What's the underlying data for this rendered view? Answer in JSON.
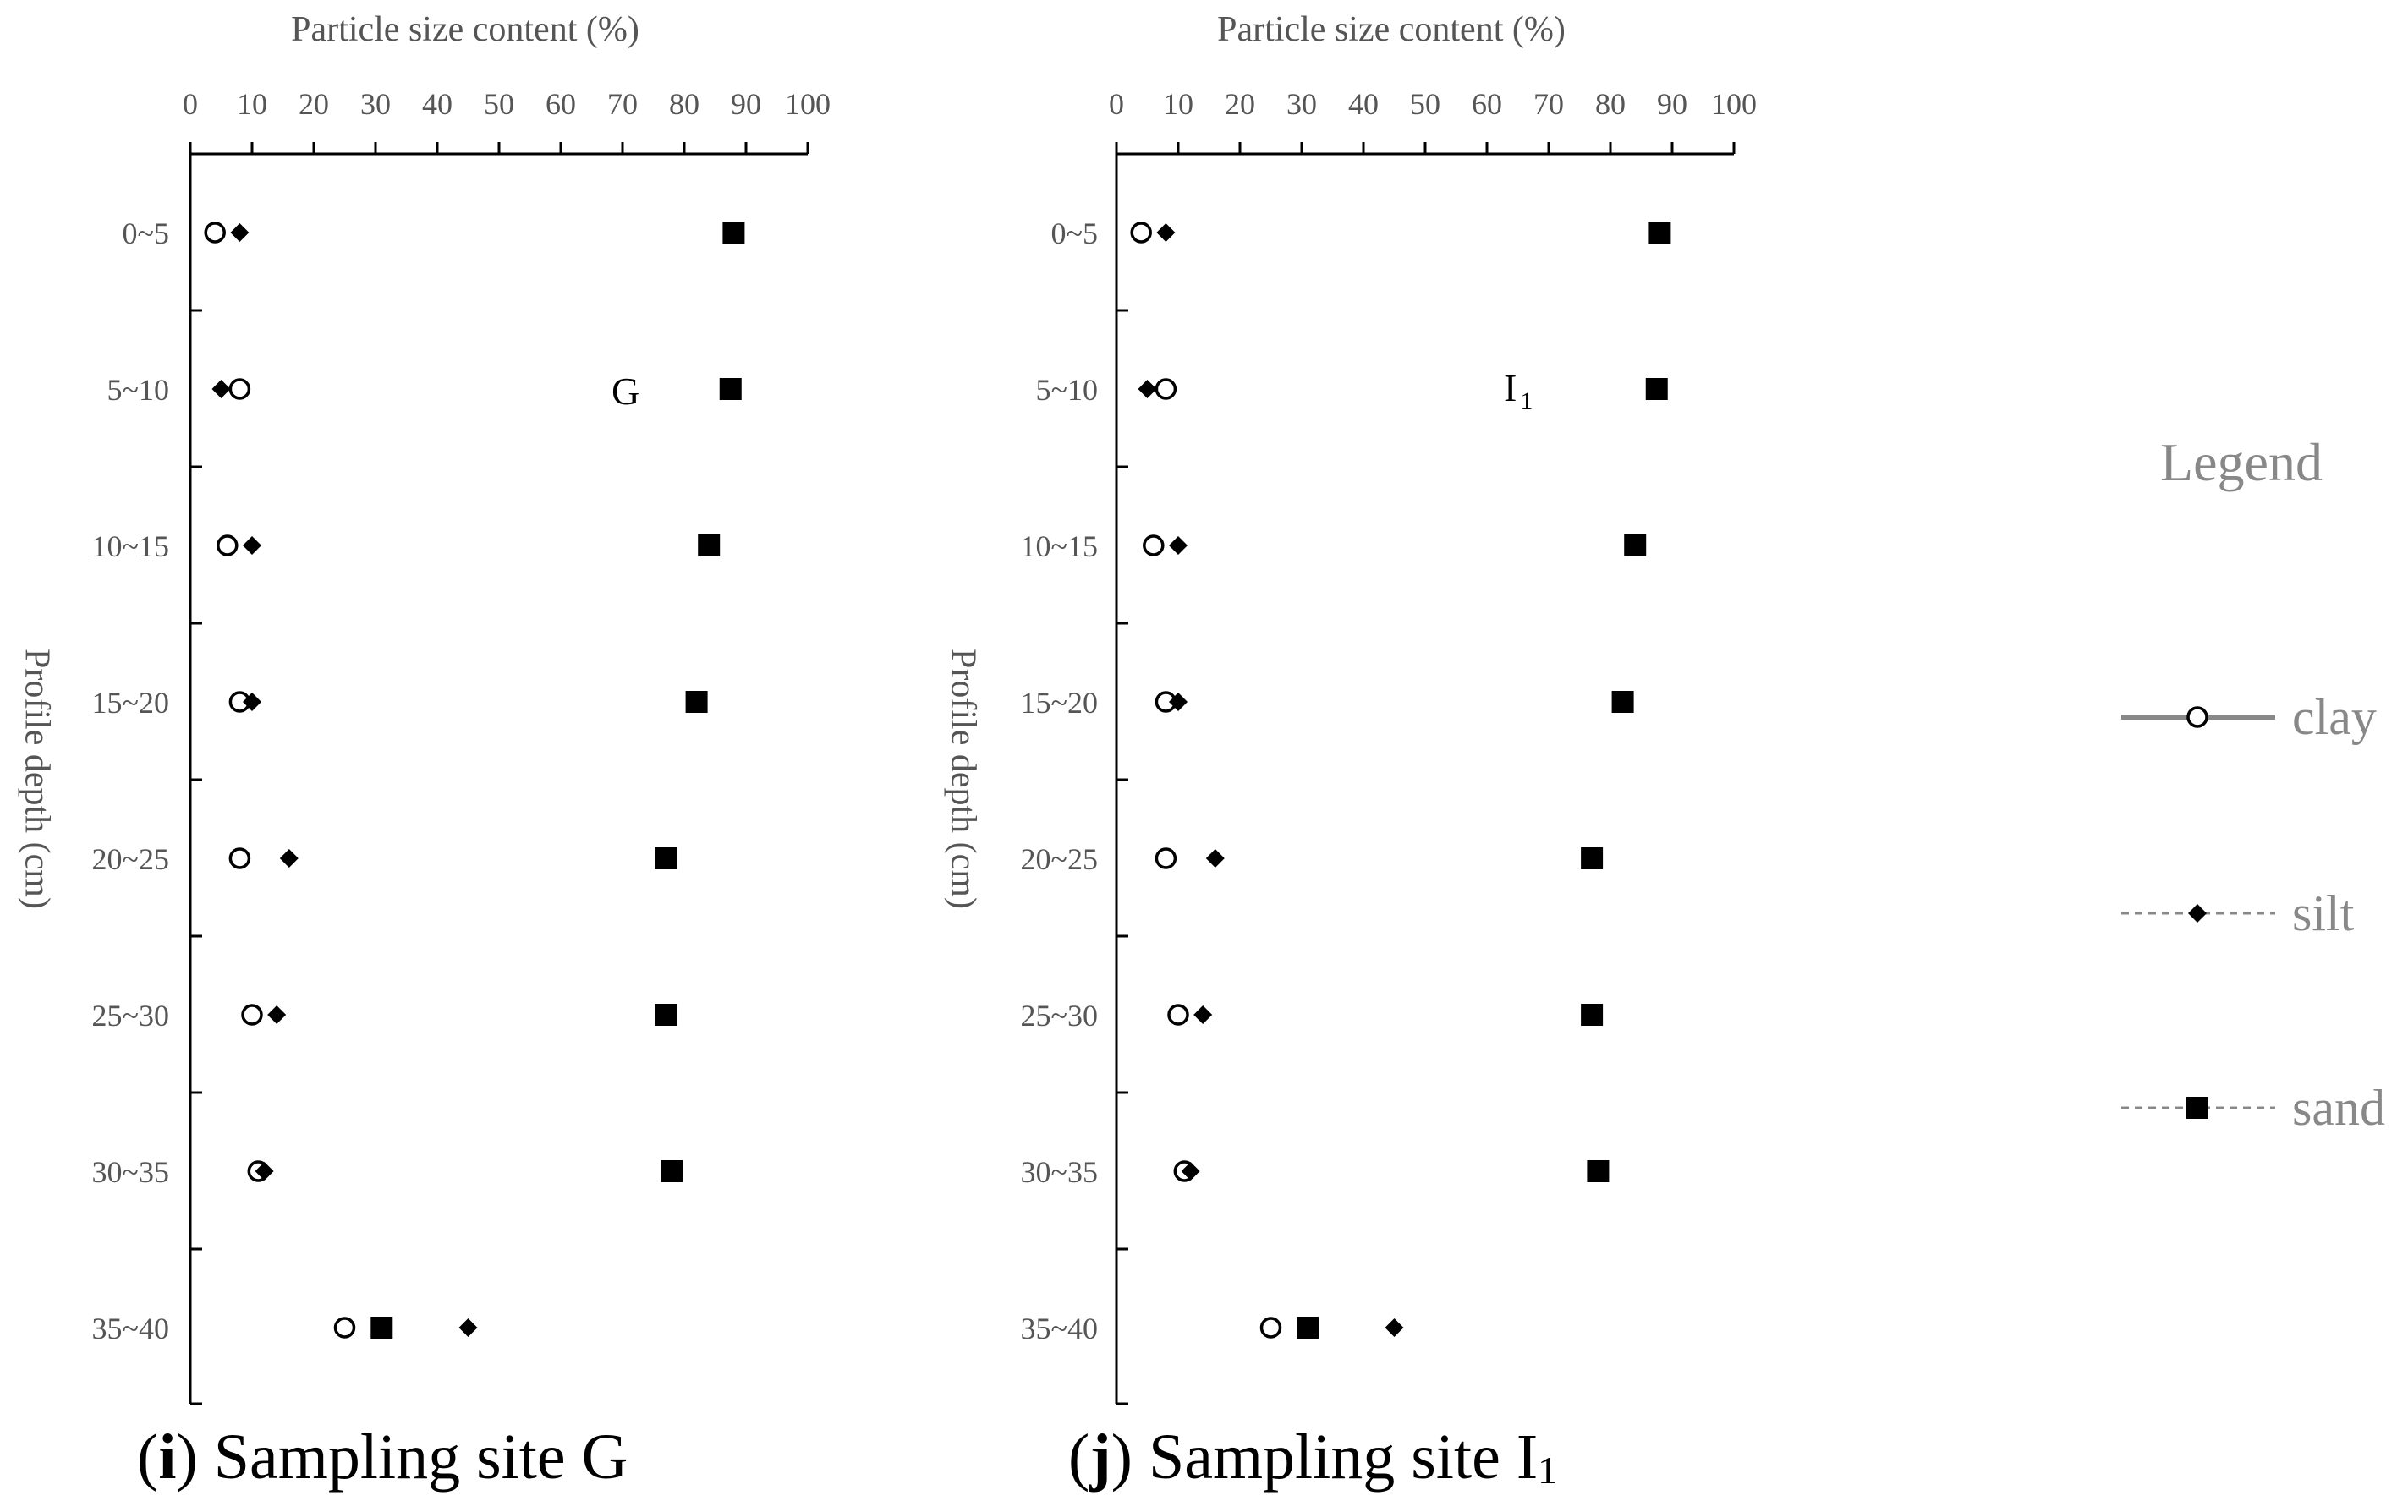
{
  "chart_data": [
    {
      "type": "scatter",
      "panel_label": "i",
      "caption": "Sampling site G",
      "site_mark": "G",
      "xlabel": "Particle size content (%)",
      "ylabel": "Profile depth (cm)",
      "xlim": [
        0,
        100
      ],
      "xticks": [
        0,
        10,
        20,
        30,
        40,
        50,
        60,
        70,
        80,
        90,
        100
      ],
      "categories": [
        "0~5",
        "5~10",
        "10~15",
        "15~20",
        "20~25",
        "25~30",
        "30~35",
        "35~40"
      ],
      "series": [
        {
          "name": "clay",
          "values": [
            4,
            8,
            6,
            8,
            8,
            10,
            11,
            25
          ]
        },
        {
          "name": "silt",
          "values": [
            8,
            5,
            10,
            10,
            16,
            14,
            12,
            45
          ]
        },
        {
          "name": "sand",
          "values": [
            88,
            87.5,
            84,
            82,
            77,
            77,
            78,
            31
          ]
        }
      ],
      "grid": false
    },
    {
      "type": "scatter",
      "panel_label": "j",
      "caption": "Sampling site I",
      "caption_subscript": "1",
      "site_mark": "I",
      "site_mark_subscript": "1",
      "xlabel": "Particle size content (%)",
      "ylabel": "Profile depth (cm)",
      "xlim": [
        0,
        100
      ],
      "xticks": [
        0,
        10,
        20,
        30,
        40,
        50,
        60,
        70,
        80,
        90,
        100
      ],
      "categories": [
        "0~5",
        "5~10",
        "10~15",
        "15~20",
        "20~25",
        "25~30",
        "30~35",
        "35~40"
      ],
      "series": [
        {
          "name": "clay",
          "values": [
            4,
            8,
            6,
            8,
            8,
            10,
            11,
            25
          ]
        },
        {
          "name": "silt",
          "values": [
            8,
            5,
            10,
            10,
            16,
            14,
            12,
            45
          ]
        },
        {
          "name": "sand",
          "values": [
            88,
            87.5,
            84,
            82,
            77,
            77,
            78,
            31
          ]
        }
      ],
      "grid": false
    }
  ],
  "legend": {
    "title": "Legend",
    "items": [
      {
        "label": "clay",
        "marker": "open-circle",
        "line": "solid"
      },
      {
        "label": "silt",
        "marker": "diamond",
        "line": "dashed"
      },
      {
        "label": "sand",
        "marker": "square",
        "line": "dashed"
      }
    ]
  },
  "colors": {
    "axis": "#000000",
    "text": "#555555",
    "marker": "#000000",
    "legend_text": "#888888",
    "caption": "#000000"
  }
}
